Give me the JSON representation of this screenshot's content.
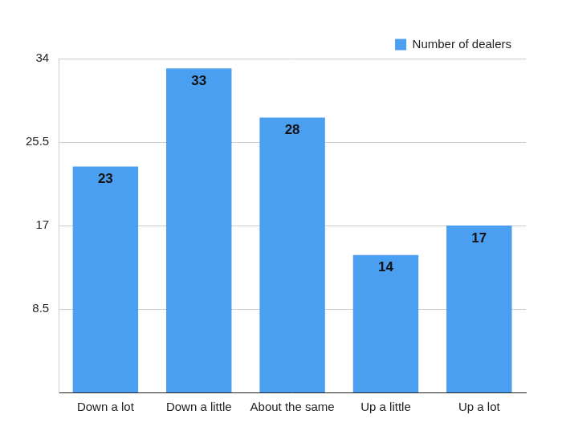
{
  "chart_data": {
    "type": "bar",
    "categories": [
      "Down a lot",
      "Down a little",
      "About the same",
      "Up a little",
      "Up a lot"
    ],
    "series": [
      {
        "name": "Number of dealers",
        "color": "#4a9ff0",
        "values": [
          23,
          33,
          28,
          14,
          17
        ]
      }
    ],
    "ylim": [
      0,
      34
    ],
    "yticks": [
      8.5,
      17,
      25.5,
      34
    ],
    "grid": true,
    "legend": "top-right",
    "data_labels": true
  }
}
